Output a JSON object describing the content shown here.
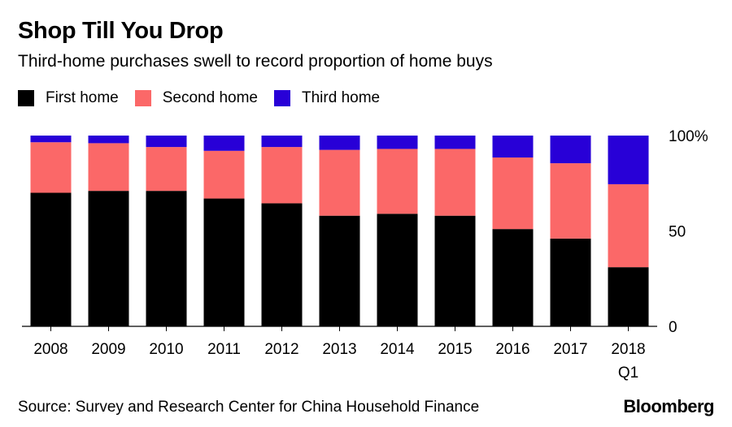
{
  "title": "Shop Till You Drop",
  "subtitle": "Third-home purchases swell to record proportion of home buys",
  "source": "Source: Survey and Research Center for China Household Finance",
  "brand": "Bloomberg",
  "colors": {
    "first": "#000000",
    "second": "#fb6868",
    "third": "#2800d7"
  },
  "chart_data": {
    "type": "bar",
    "stacked": true,
    "categories": [
      "2008",
      "2009",
      "2010",
      "2011",
      "2012",
      "2013",
      "2014",
      "2015",
      "2016",
      "2017",
      "2018 Q1"
    ],
    "category_lines": [
      [
        "2008"
      ],
      [
        "2009"
      ],
      [
        "2010"
      ],
      [
        "2011"
      ],
      [
        "2012"
      ],
      [
        "2013"
      ],
      [
        "2014"
      ],
      [
        "2015"
      ],
      [
        "2016"
      ],
      [
        "2017"
      ],
      [
        "2018",
        "Q1"
      ]
    ],
    "series": [
      {
        "name": "First home",
        "color": "#000000",
        "values": [
          70,
          71,
          71,
          67,
          64.5,
          58,
          59,
          58,
          51,
          46,
          31
        ]
      },
      {
        "name": "Second home",
        "color": "#fb6868",
        "values": [
          26.5,
          25,
          23,
          25,
          29.5,
          34.5,
          34,
          35,
          37.5,
          39.5,
          43.5
        ]
      },
      {
        "name": "Third home",
        "color": "#2800d7",
        "values": [
          3.5,
          4,
          6,
          8,
          6,
          7.5,
          7,
          7,
          11.5,
          14.5,
          25.5
        ]
      }
    ],
    "ylim": [
      0,
      100
    ],
    "yticks": [
      0,
      50,
      100
    ],
    "ytick_labels": [
      "0",
      "50",
      "100%"
    ],
    "legend_position": "top-left",
    "grid": false
  }
}
